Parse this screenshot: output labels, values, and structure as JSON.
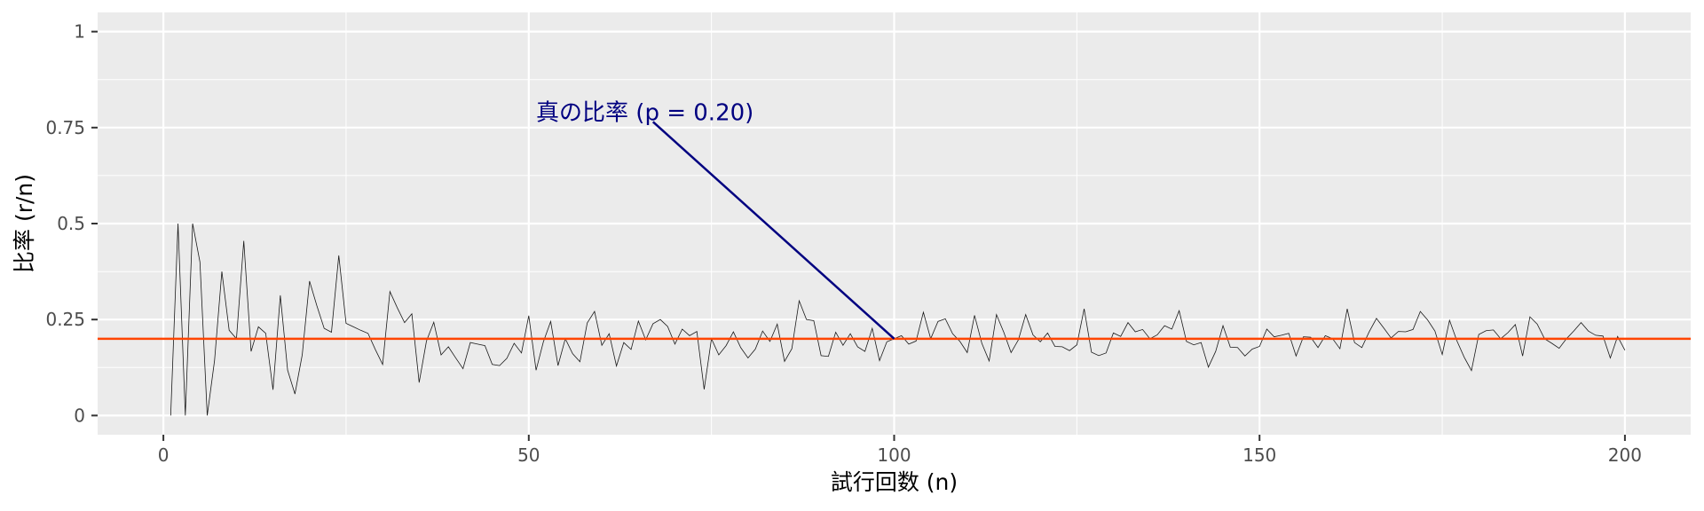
{
  "chart_data": {
    "type": "line",
    "title": "",
    "xlabel": "試行回数 (n)",
    "ylabel": "比率 (r/n)",
    "xlim": [
      -9,
      209
    ],
    "ylim": [
      -0.05,
      1.05
    ],
    "x_ticks": [
      0,
      50,
      100,
      150,
      200
    ],
    "x_tick_labels": [
      "0",
      "50",
      "100",
      "150",
      "200"
    ],
    "y_ticks": [
      0,
      0.25,
      0.5,
      0.75,
      1
    ],
    "y_tick_labels": [
      "0",
      "0.25",
      "0.5",
      "0.75",
      "1"
    ],
    "grid": true,
    "legend": "none",
    "colors": {
      "panel": "#ebebeb",
      "grid": "#ffffff",
      "series": "#1a1a1a",
      "reference": "#ff4500",
      "annotation": "#000080"
    },
    "series": [
      {
        "x": [
          1,
          2,
          3,
          4,
          5,
          6,
          7,
          8,
          9,
          10,
          11,
          12,
          13,
          14,
          15,
          16,
          17,
          18,
          19,
          20,
          21,
          22,
          23,
          24,
          25,
          26,
          27,
          28,
          29,
          30,
          31,
          32,
          33,
          34,
          35,
          36,
          37,
          38,
          39,
          40,
          41,
          42,
          43,
          44,
          45,
          46,
          47,
          48,
          49,
          50,
          51,
          52,
          53,
          54,
          55,
          56,
          57,
          58,
          59,
          60,
          61,
          62,
          63,
          64,
          65,
          66,
          67,
          68,
          69,
          70,
          71,
          72,
          73,
          74,
          75,
          76,
          77,
          78,
          79,
          80,
          81,
          82,
          83,
          84,
          85,
          86,
          87,
          88,
          89,
          90,
          91,
          92,
          93,
          94,
          95,
          96,
          97,
          98,
          99,
          100,
          101,
          102,
          103,
          104,
          105,
          106,
          107,
          108,
          109,
          110,
          111,
          112,
          113,
          114,
          115,
          116,
          117,
          118,
          119,
          120,
          121,
          122,
          123,
          124,
          125,
          126,
          127,
          128,
          129,
          130,
          131,
          132,
          133,
          134,
          135,
          136,
          137,
          138,
          139,
          140,
          141,
          142,
          143,
          144,
          145,
          146,
          147,
          148,
          149,
          150,
          151,
          152,
          153,
          154,
          155,
          156,
          157,
          158,
          159,
          160,
          161,
          162,
          163,
          164,
          165,
          166,
          167,
          168,
          169,
          170,
          171,
          172,
          173,
          174,
          175,
          176,
          177,
          178,
          179,
          180,
          181,
          182,
          183,
          184,
          185,
          186,
          187,
          188,
          189,
          190,
          191,
          192,
          193,
          194,
          195,
          196,
          197,
          198,
          199,
          200
        ],
        "y": [
          0,
          0.5,
          0,
          0.5,
          0.4,
          0,
          0.143,
          0.375,
          0.222,
          0.2,
          0.455,
          0.167,
          0.231,
          0.214,
          0.067,
          0.313,
          0.118,
          0.056,
          0.158,
          0.35,
          0.286,
          0.227,
          0.217,
          0.417,
          0.24,
          0.231,
          0.222,
          0.214,
          0.172,
          0.133,
          0.323,
          0.281,
          0.242,
          0.265,
          0.086,
          0.194,
          0.243,
          0.158,
          0.179,
          0.15,
          0.122,
          0.19,
          0.186,
          0.182,
          0.133,
          0.13,
          0.149,
          0.188,
          0.163,
          0.26,
          0.118,
          0.192,
          0.245,
          0.13,
          0.2,
          0.161,
          0.14,
          0.241,
          0.271,
          0.183,
          0.213,
          0.129,
          0.19,
          0.172,
          0.246,
          0.197,
          0.239,
          0.25,
          0.232,
          0.186,
          0.225,
          0.208,
          0.219,
          0.068,
          0.2,
          0.158,
          0.182,
          0.218,
          0.177,
          0.15,
          0.173,
          0.22,
          0.193,
          0.238,
          0.141,
          0.174,
          0.299,
          0.25,
          0.247,
          0.156,
          0.154,
          0.217,
          0.183,
          0.213,
          0.179,
          0.167,
          0.227,
          0.143,
          0.192,
          0.2,
          0.208,
          0.186,
          0.194,
          0.269,
          0.2,
          0.245,
          0.252,
          0.213,
          0.193,
          0.164,
          0.261,
          0.188,
          0.142,
          0.263,
          0.217,
          0.164,
          0.197,
          0.263,
          0.21,
          0.192,
          0.215,
          0.18,
          0.179,
          0.169,
          0.184,
          0.278,
          0.165,
          0.156,
          0.163,
          0.215,
          0.206,
          0.242,
          0.218,
          0.224,
          0.2,
          0.21,
          0.234,
          0.225,
          0.273,
          0.193,
          0.184,
          0.19,
          0.126,
          0.167,
          0.234,
          0.178,
          0.177,
          0.155,
          0.173,
          0.18,
          0.225,
          0.205,
          0.209,
          0.214,
          0.155,
          0.205,
          0.204,
          0.177,
          0.208,
          0.2,
          0.174,
          0.278,
          0.19,
          0.177,
          0.218,
          0.253,
          0.228,
          0.202,
          0.219,
          0.218,
          0.224,
          0.271,
          0.249,
          0.22,
          0.159,
          0.248,
          0.195,
          0.152,
          0.117,
          0.211,
          0.221,
          0.223,
          0.2,
          0.216,
          0.237,
          0.155,
          0.257,
          0.238,
          0.2,
          0.188,
          0.175,
          0.2,
          0.22,
          0.242,
          0.22,
          0.209,
          0.207,
          0.15,
          0.206,
          0.17
        ]
      }
    ],
    "reference_line": {
      "y": 0.2
    },
    "annotations": [
      {
        "text": "真の比率 (p = 0.20)",
        "label_x": 51,
        "label_y": 0.79,
        "arrow_from": [
          67,
          0.765
        ],
        "arrow_to": [
          100,
          0.2
        ]
      }
    ]
  }
}
